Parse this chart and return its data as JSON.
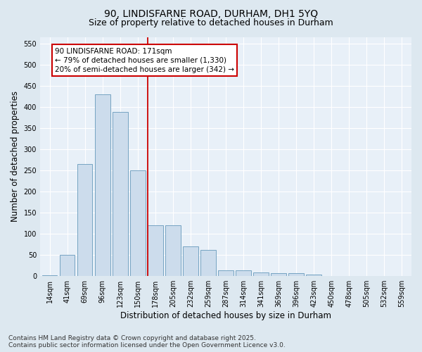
{
  "title": "90, LINDISFARNE ROAD, DURHAM, DH1 5YQ",
  "subtitle": "Size of property relative to detached houses in Durham",
  "xlabel": "Distribution of detached houses by size in Durham",
  "ylabel": "Number of detached properties",
  "categories": [
    "14sqm",
    "41sqm",
    "69sqm",
    "96sqm",
    "123sqm",
    "150sqm",
    "178sqm",
    "205sqm",
    "232sqm",
    "259sqm",
    "287sqm",
    "314sqm",
    "341sqm",
    "369sqm",
    "396sqm",
    "423sqm",
    "450sqm",
    "478sqm",
    "505sqm",
    "532sqm",
    "559sqm"
  ],
  "values": [
    2,
    50,
    265,
    430,
    388,
    250,
    120,
    120,
    70,
    62,
    13,
    13,
    9,
    7,
    7,
    4,
    1,
    0,
    1,
    0,
    1
  ],
  "bar_color": "#ccdcec",
  "bar_edge_color": "#6699bb",
  "reference_line_label": "90 LINDISFARNE ROAD: 171sqm",
  "annotation_line1": "← 79% of detached houses are smaller (1,330)",
  "annotation_line2": "20% of semi-detached houses are larger (342) →",
  "annotation_box_color": "#ffffff",
  "annotation_box_edge_color": "#cc0000",
  "vline_color": "#cc0000",
  "vline_index": 6,
  "ylim": [
    0,
    565
  ],
  "yticks": [
    0,
    50,
    100,
    150,
    200,
    250,
    300,
    350,
    400,
    450,
    500,
    550
  ],
  "footer_line1": "Contains HM Land Registry data © Crown copyright and database right 2025.",
  "footer_line2": "Contains public sector information licensed under the Open Government Licence v3.0.",
  "bg_color": "#dde8f0",
  "plot_bg_color": "#e8f0f8",
  "title_fontsize": 10,
  "subtitle_fontsize": 9,
  "axis_label_fontsize": 8.5,
  "tick_fontsize": 7,
  "footer_fontsize": 6.5,
  "annotation_fontsize": 7.5
}
